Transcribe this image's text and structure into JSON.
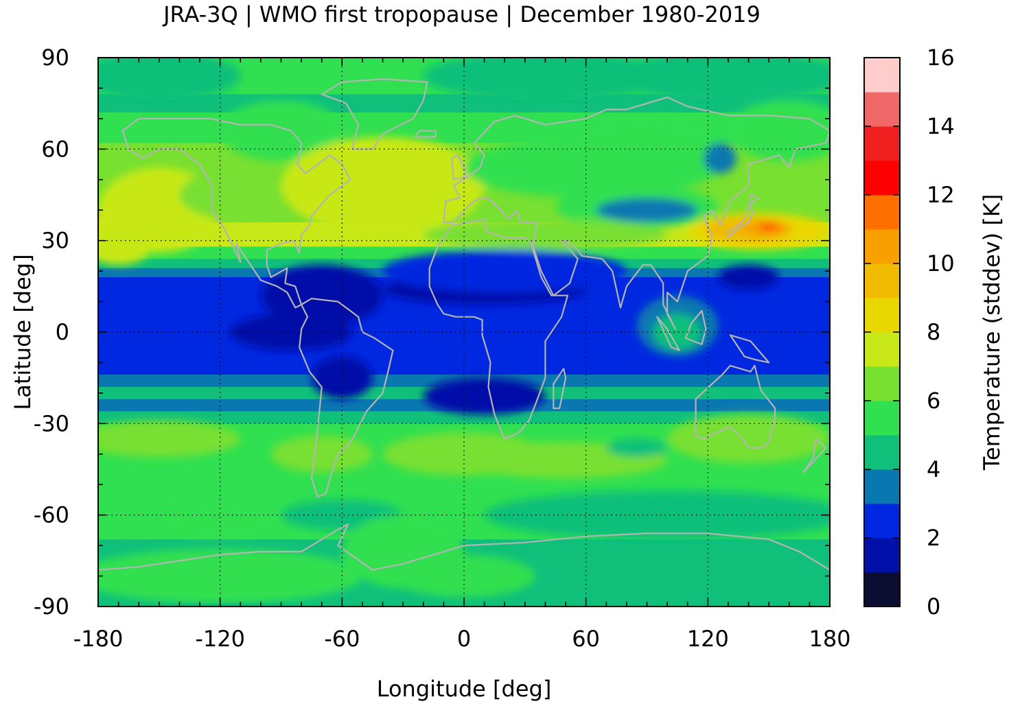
{
  "chart_data": {
    "type": "heatmap",
    "title": "JRA-3Q | WMO first tropopause | December 1980-2019",
    "xlabel": "Longitude [deg]",
    "ylabel": "Latitude [deg]",
    "colorbar_label": "Temperature (stddev) [K]",
    "xlim": [
      -180,
      180
    ],
    "ylim": [
      -90,
      90
    ],
    "xticks": [
      "-180",
      "-120",
      "-60",
      "0",
      "60",
      "120",
      "180"
    ],
    "yticks": [
      "90",
      "60",
      "30",
      "0",
      "-30",
      "-60",
      "-90"
    ],
    "colorbar_ticks": [
      "16",
      "14",
      "12",
      "10",
      "8",
      "6",
      "4",
      "2",
      "0"
    ],
    "colorbar_range": [
      0,
      16
    ],
    "grid": true,
    "levels": [
      0,
      1,
      2,
      3,
      4,
      5,
      6,
      7,
      8,
      9,
      10,
      11,
      12,
      13,
      14,
      15,
      16
    ],
    "level_colors": [
      "#0b0d33",
      "#0010a8",
      "#0028e0",
      "#0a78b0",
      "#10c07a",
      "#30e050",
      "#78e030",
      "#c8e818",
      "#e8d800",
      "#f0bb00",
      "#f8a000",
      "#ff7000",
      "#ff0000",
      "#f02020",
      "#f06868",
      "#ffcccc"
    ],
    "coastline_color": "#b4b4b4"
  }
}
